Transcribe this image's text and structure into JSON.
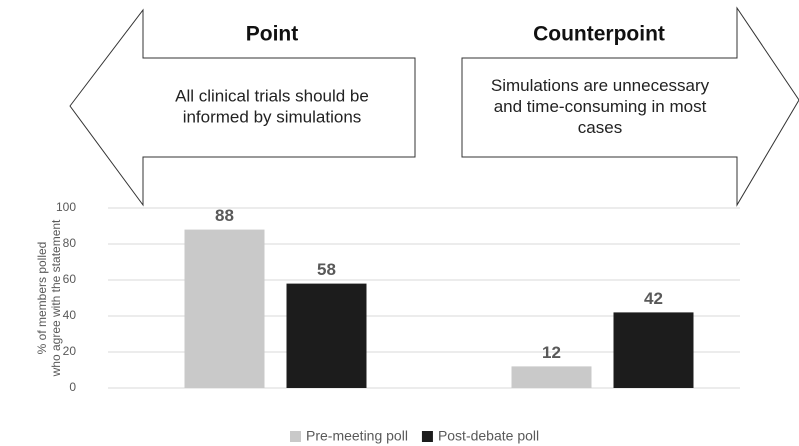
{
  "chart_data": {
    "type": "bar",
    "point_heading": "Point",
    "point_text": "All clinical trials should be informed by simulations",
    "counterpoint_heading": "Counterpoint",
    "counterpoint_text": "Simulations are unnecessary and time-consuming in most cases",
    "y_label": [
      "% of members polled",
      "who agree with the statement"
    ],
    "categories": [
      null,
      null
    ],
    "series": [
      {
        "name": "Pre-meeting poll",
        "color": "#c9c9c9",
        "values": [
          88,
          12
        ]
      },
      {
        "name": "Post-debate poll",
        "color": "#1c1c1c",
        "values": [
          58,
          42
        ]
      }
    ],
    "ylim": [
      0,
      100
    ],
    "yticks": [
      0,
      20,
      40,
      60,
      80,
      100
    ],
    "grid": true,
    "legend": "bottom"
  }
}
